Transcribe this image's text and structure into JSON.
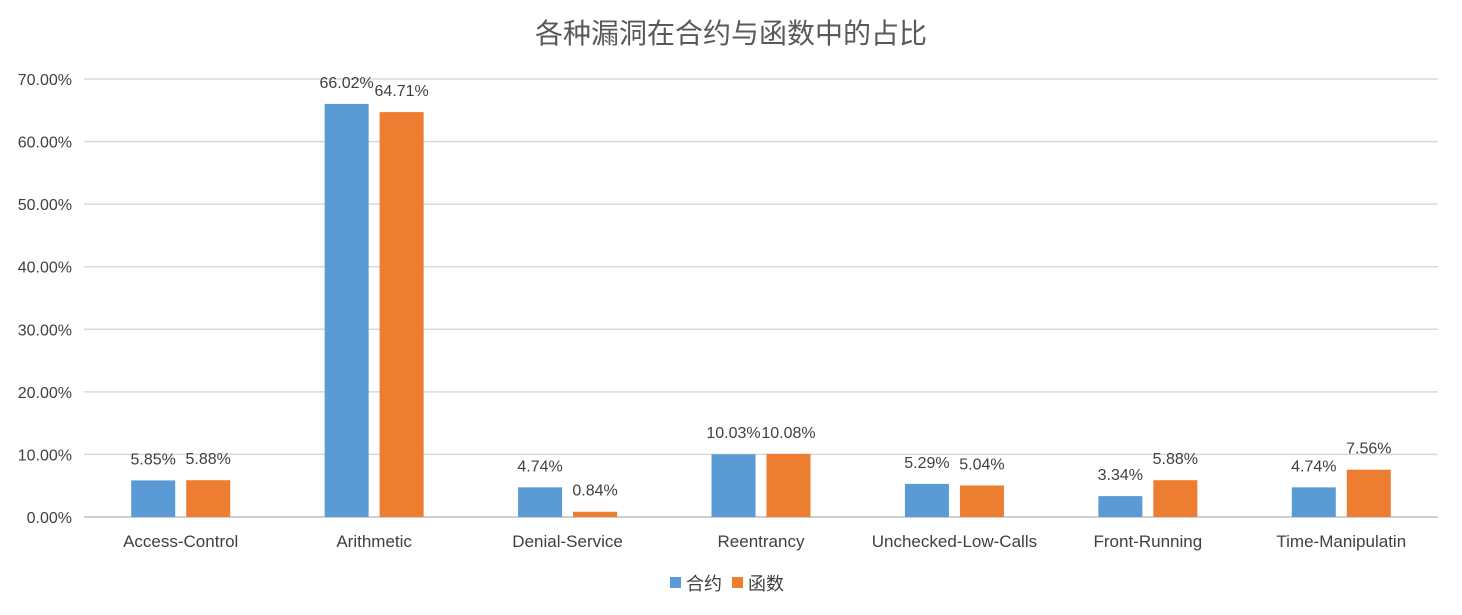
{
  "chart_data": {
    "type": "bar",
    "title": "各种漏洞在合约与函数中的占比",
    "categories": [
      "Access-Control",
      "Arithmetic",
      "Denial-Service",
      "Reentrancy",
      "Unchecked-Low-Calls",
      "Front-Running",
      "Time-Manipulatin"
    ],
    "series": [
      {
        "name": "合约",
        "color": "#5B9BD5",
        "values": [
          5.85,
          66.02,
          4.74,
          10.03,
          5.29,
          3.34,
          4.74
        ],
        "labels": [
          "5.85%",
          "66.02%",
          "4.74%",
          "10.03%",
          "5.29%",
          "3.34%",
          "4.74%"
        ]
      },
      {
        "name": "函数",
        "color": "#ED7D31",
        "values": [
          5.88,
          64.71,
          0.84,
          10.08,
          5.04,
          5.88,
          7.56
        ],
        "labels": [
          "5.88%",
          "64.71%",
          "0.84%",
          "10.08%",
          "5.04%",
          "5.88%",
          "7.56%"
        ]
      }
    ],
    "ylim": [
      0,
      70
    ],
    "yticks": [
      "0.00%",
      "10.00%",
      "20.00%",
      "30.00%",
      "40.00%",
      "50.00%",
      "60.00%",
      "70.00%"
    ],
    "grid": true,
    "legend_position": "bottom"
  }
}
